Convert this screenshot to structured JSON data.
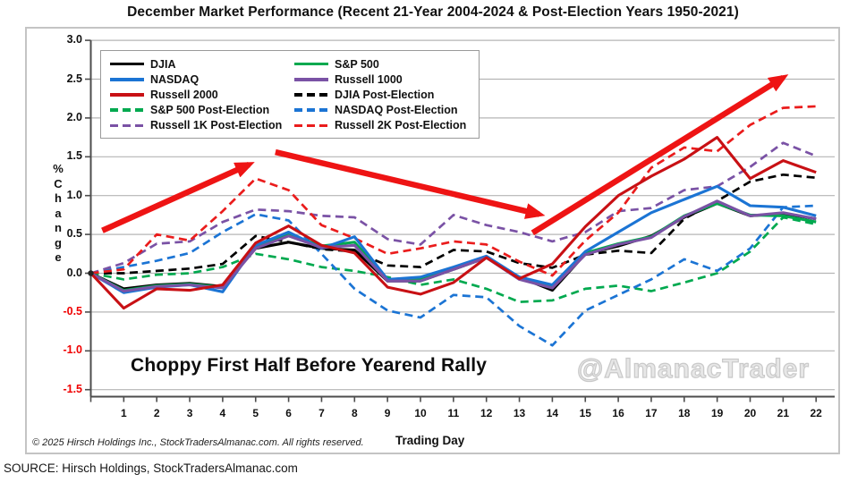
{
  "title": "December Market Performance (Recent 21-Year 2004-2024 & Post-Election Years 1950-2021)",
  "annotations": {
    "choppy_text": "Choppy First Half Before Yearend Rally",
    "watermark": "@AlmanacTrader"
  },
  "footer": {
    "copyright": "© 2025 Hirsch Holdings Inc., StockTradersAlmanac.com. All rights reserved.",
    "xaxis_title": "Trading Day"
  },
  "source_line": "SOURCE: Hirsch Holdings, StockTradersAlmanac.com",
  "colors": {
    "black": "#000000",
    "green": "#00a94f",
    "blue": "#1b74d4",
    "purple": "#7a52a5",
    "dark_red": "#c81014",
    "bright_red": "#ea1c1c",
    "arrow_red": "#ee1414",
    "negative_tick": "#f00000",
    "gridline": "#b5b5b5",
    "axis": "#4d4d4d"
  },
  "chart_data": {
    "type": "line",
    "x": [
      0,
      1,
      2,
      3,
      4,
      5,
      6,
      7,
      8,
      9,
      10,
      11,
      12,
      13,
      14,
      15,
      16,
      17,
      18,
      19,
      20,
      21,
      22
    ],
    "xlabel": "Trading Day",
    "ylabel": "% Change",
    "ylabel_chars": [
      "%",
      "C",
      "h",
      "a",
      "n",
      "g",
      "e"
    ],
    "ylim": [
      -1.5,
      3.0
    ],
    "ytick_step": 0.5,
    "xtick_labels": [
      "1",
      "2",
      "3",
      "4",
      "5",
      "6",
      "7",
      "8",
      "9",
      "10",
      "11",
      "12",
      "13",
      "14",
      "15",
      "16",
      "17",
      "18",
      "19",
      "20",
      "21",
      "22"
    ],
    "grid": "horizontal",
    "legend_position": "top-left",
    "legend_order": [
      0,
      2,
      4,
      6,
      8,
      1,
      3,
      5,
      7,
      9
    ],
    "series": [
      {
        "name": "DJIA",
        "color": "#000000",
        "style": "solid",
        "values": [
          0,
          -0.2,
          -0.15,
          -0.13,
          -0.17,
          0.32,
          0.4,
          0.32,
          0.3,
          -0.1,
          -0.1,
          0.05,
          0.2,
          -0.05,
          -0.22,
          0.25,
          0.35,
          0.48,
          0.72,
          0.9,
          0.74,
          0.77,
          0.7
        ]
      },
      {
        "name": "S&P 500",
        "color": "#00a94f",
        "style": "solid",
        "values": [
          0,
          -0.22,
          -0.16,
          -0.14,
          -0.18,
          0.33,
          0.5,
          0.35,
          0.4,
          -0.08,
          -0.08,
          0.07,
          0.21,
          -0.06,
          -0.18,
          0.26,
          0.38,
          0.47,
          0.74,
          0.9,
          0.75,
          0.74,
          0.66
        ]
      },
      {
        "name": "NASDAQ",
        "color": "#1b74d4",
        "style": "solid",
        "values": [
          0,
          -0.25,
          -0.18,
          -0.15,
          -0.24,
          0.36,
          0.53,
          0.32,
          0.47,
          -0.08,
          -0.05,
          0.08,
          0.22,
          -0.05,
          -0.15,
          0.28,
          0.53,
          0.78,
          0.95,
          1.12,
          0.87,
          0.85,
          0.74
        ]
      },
      {
        "name": "Russell 1000",
        "color": "#7a52a5",
        "style": "solid",
        "values": [
          0,
          -0.23,
          -0.17,
          -0.15,
          -0.19,
          0.32,
          0.48,
          0.33,
          0.36,
          -0.1,
          -0.1,
          0.05,
          0.2,
          -0.08,
          -0.19,
          0.24,
          0.37,
          0.46,
          0.73,
          0.93,
          0.74,
          0.78,
          0.7
        ]
      },
      {
        "name": "Russell 2000",
        "color": "#c81014",
        "style": "solid",
        "values": [
          0,
          -0.45,
          -0.2,
          -0.22,
          -0.15,
          0.39,
          0.61,
          0.36,
          0.26,
          -0.18,
          -0.27,
          -0.12,
          0.2,
          -0.07,
          0.12,
          0.6,
          1.0,
          1.25,
          1.47,
          1.75,
          1.22,
          1.45,
          1.3
        ]
      },
      {
        "name": "DJIA Post-Election",
        "color": "#000000",
        "style": "dashed",
        "values": [
          0,
          0.0,
          0.03,
          0.06,
          0.12,
          0.48,
          0.4,
          0.31,
          0.28,
          0.1,
          0.08,
          0.3,
          0.28,
          0.13,
          0.07,
          0.24,
          0.29,
          0.26,
          0.7,
          0.93,
          1.18,
          1.27,
          1.23
        ]
      },
      {
        "name": "S&P 500 Post-Election",
        "color": "#00a94f",
        "style": "dashed",
        "values": [
          0,
          -0.08,
          -0.02,
          0.0,
          0.08,
          0.25,
          0.18,
          0.08,
          0.03,
          -0.05,
          -0.15,
          -0.08,
          -0.2,
          -0.37,
          -0.35,
          -0.2,
          -0.16,
          -0.23,
          -0.12,
          0.0,
          0.28,
          0.72,
          0.63
        ]
      },
      {
        "name": "NASDAQ Post-Election",
        "color": "#1b74d4",
        "style": "dashed",
        "values": [
          0,
          0.08,
          0.16,
          0.26,
          0.53,
          0.76,
          0.68,
          0.25,
          -0.2,
          -0.48,
          -0.57,
          -0.28,
          -0.31,
          -0.68,
          -0.93,
          -0.48,
          -0.28,
          -0.08,
          0.18,
          0.03,
          0.32,
          0.85,
          0.87
        ]
      },
      {
        "name": "Russell 1K Post-Election",
        "color": "#7a52a5",
        "style": "dashed",
        "values": [
          0,
          0.13,
          0.38,
          0.41,
          0.66,
          0.82,
          0.8,
          0.74,
          0.72,
          0.44,
          0.37,
          0.75,
          0.62,
          0.53,
          0.41,
          0.53,
          0.8,
          0.84,
          1.07,
          1.12,
          1.37,
          1.68,
          1.51
        ]
      },
      {
        "name": "Russell 2K Post-Election",
        "color": "#ea1c1c",
        "style": "dashed",
        "values": [
          0,
          0.05,
          0.5,
          0.42,
          0.8,
          1.22,
          1.07,
          0.62,
          0.45,
          0.25,
          0.32,
          0.41,
          0.37,
          0.15,
          -0.03,
          0.42,
          0.78,
          1.36,
          1.62,
          1.57,
          1.91,
          2.13,
          2.15
        ]
      }
    ],
    "arrows": [
      {
        "from_day": 0.35,
        "from_val": 0.55,
        "to_day": 4.8,
        "to_val": 1.4
      },
      {
        "from_day": 5.6,
        "from_val": 1.56,
        "to_day": 13.6,
        "to_val": 0.76
      },
      {
        "from_day": 13.4,
        "from_val": 0.52,
        "to_day": 21.0,
        "to_val": 2.52
      }
    ]
  }
}
